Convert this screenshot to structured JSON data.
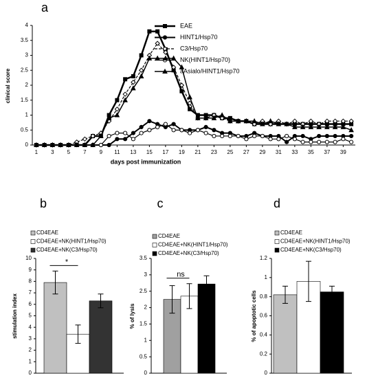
{
  "chart_data": [
    {
      "type": "line",
      "title": "a",
      "x_label": "days post immunization",
      "y_label": "clinical score",
      "x": [
        1,
        2,
        3,
        4,
        5,
        6,
        7,
        8,
        9,
        10,
        11,
        12,
        13,
        14,
        15,
        16,
        17,
        18,
        19,
        20,
        21,
        22,
        23,
        24,
        25,
        26,
        27,
        28,
        29,
        30,
        31,
        32,
        33,
        34,
        35,
        36,
        37,
        38,
        39,
        40
      ],
      "xlim": [
        0.5,
        40.5
      ],
      "xticks": [
        1,
        3,
        5,
        7,
        9,
        11,
        13,
        15,
        17,
        19,
        21,
        23,
        25,
        27,
        29,
        31,
        33,
        35,
        37,
        39
      ],
      "ylim": [
        0,
        4
      ],
      "yticks": [
        0,
        0.5,
        1,
        1.5,
        2,
        2.5,
        3,
        3.5,
        4
      ],
      "series": [
        {
          "name": "EAE",
          "color": "#000000",
          "line_width": 2.5,
          "dashed": false,
          "marker": "square",
          "marker_filled": true,
          "values": [
            0,
            0,
            0,
            0,
            0,
            0,
            0,
            0.3,
            0.3,
            1.0,
            1.5,
            2.2,
            2.3,
            3.0,
            3.8,
            3.8,
            3.2,
            2.5,
            1.8,
            1.2,
            1.0,
            1.0,
            1.0,
            0.9,
            0.9,
            0.8,
            0.8,
            0.7,
            0.7,
            0.7,
            0.7,
            0.7,
            0.7,
            0.7,
            0.7,
            0.7,
            0.7,
            0.7,
            0.7,
            0.7
          ]
        },
        {
          "name": "HINT1/Hsp70",
          "color": "#000000",
          "line_width": 2,
          "dashed": false,
          "marker": "circle",
          "marker_filled": true,
          "values": [
            0,
            0,
            0,
            0,
            0,
            0,
            0,
            0,
            0,
            0,
            0.2,
            0.2,
            0.4,
            0.6,
            0.8,
            0.7,
            0.6,
            0.7,
            0.5,
            0.5,
            0.5,
            0.6,
            0.5,
            0.4,
            0.4,
            0.3,
            0.3,
            0.4,
            0.3,
            0.3,
            0.3,
            0.1,
            0.3,
            0.3,
            0.2,
            0.3,
            0.3,
            0.3,
            0.3,
            0.3
          ]
        },
        {
          "name": "C3/Hsp70",
          "color": "#000000",
          "line_width": 1.2,
          "dashed": true,
          "marker": "diamond",
          "marker_filled": false,
          "values": [
            0,
            0,
            0,
            0,
            0,
            0.1,
            0.2,
            0.3,
            0.4,
            0.8,
            1.2,
            1.7,
            2.1,
            2.5,
            3.0,
            3.4,
            3.1,
            2.6,
            2.0,
            1.4,
            0.9,
            0.9,
            1.0,
            0.9,
            0.8,
            0.8,
            0.8,
            0.7,
            0.8,
            0.7,
            0.8,
            0.7,
            0.8,
            0.7,
            0.8,
            0.7,
            0.8,
            0.8,
            0.8,
            0.8
          ]
        },
        {
          "name": "NK(HINT1/Hsp70)",
          "color": "#000000",
          "line_width": 1.2,
          "dashed": false,
          "marker": "circle",
          "marker_filled": false,
          "values": [
            0,
            0,
            0,
            0,
            0,
            0,
            0,
            0,
            0,
            0.3,
            0.4,
            0.4,
            0.2,
            0.4,
            0.5,
            0.6,
            0.7,
            0.5,
            0.5,
            0.4,
            0.5,
            0.4,
            0.3,
            0.3,
            0.3,
            0.3,
            0.2,
            0.3,
            0.3,
            0.2,
            0.2,
            0.3,
            0.2,
            0.1,
            0.1,
            0.1,
            0.1,
            0.1,
            0.2,
            0.1
          ]
        },
        {
          "name": "aAsialo/HINT1/Hsp70",
          "color": "#000000",
          "line_width": 1.5,
          "dashed": false,
          "marker": "triangle",
          "marker_filled": true,
          "values": [
            0,
            0,
            0,
            0,
            0,
            0,
            0,
            0,
            0.3,
            0.9,
            1.0,
            1.5,
            1.9,
            2.3,
            2.9,
            2.9,
            2.9,
            2.9,
            2.6,
            1.6,
            0.9,
            0.9,
            0.9,
            1.0,
            0.8,
            0.8,
            0.8,
            0.8,
            0.7,
            0.8,
            0.7,
            0.7,
            0.6,
            0.6,
            0.6,
            0.6,
            0.6,
            0.6,
            0.6,
            0.5
          ]
        }
      ]
    },
    {
      "type": "bar",
      "title": "b",
      "y_label": "stimulation index",
      "annotation": "*",
      "ylim": [
        0,
        10
      ],
      "yticks": [
        0,
        1,
        2,
        3,
        4,
        5,
        6,
        7,
        8,
        9,
        10
      ],
      "series": [
        {
          "name": "CD4EAE",
          "color": "#c0c0c0",
          "values": [
            7.9
          ],
          "errors": [
            1.0
          ]
        },
        {
          "name": "CD4EAE+NK(HINT1/Hsp70)",
          "color": "#ffffff",
          "values": [
            3.4
          ],
          "errors": [
            0.8
          ]
        },
        {
          "name": "CD4EAE+NK(C3/Hsp70)",
          "color": "#333333",
          "values": [
            6.3
          ],
          "errors": [
            0.6
          ]
        }
      ]
    },
    {
      "type": "bar",
      "title": "c",
      "y_label": "% of lysis",
      "annotation": "ns",
      "ylim": [
        0,
        3.5
      ],
      "yticks": [
        0,
        0.5,
        1,
        1.5,
        2,
        2.5,
        3,
        3.5
      ],
      "series": [
        {
          "name": "CD4EAE",
          "color": "#a0a0a0",
          "values": [
            2.25
          ],
          "errors": [
            0.42
          ]
        },
        {
          "name": "CD4EAE+NK(HINT1/Hsp70)",
          "color": "#ffffff",
          "values": [
            2.35
          ],
          "errors": [
            0.38
          ]
        },
        {
          "name": "CD4EAE+NK(C3/Hsp70)",
          "color": "#000000",
          "values": [
            2.72
          ],
          "errors": [
            0.25
          ]
        }
      ]
    },
    {
      "type": "bar",
      "title": "d",
      "y_label": "% of apoptotic cells",
      "ylim": [
        0,
        1.2
      ],
      "yticks": [
        0,
        0.2,
        0.4,
        0.6,
        0.8,
        1,
        1.2
      ],
      "series": [
        {
          "name": "CD4EAE",
          "color": "#c0c0c0",
          "values": [
            0.82
          ],
          "errors": [
            0.09
          ]
        },
        {
          "name": "CD4EAE+NK(HINT1/Hsp70)",
          "color": "#ffffff",
          "values": [
            0.96
          ],
          "errors": [
            0.21
          ]
        },
        {
          "name": "CD4EAE+NK(C3/Hsp70)",
          "color": "#000000",
          "values": [
            0.85
          ],
          "errors": [
            0.06
          ]
        }
      ]
    }
  ]
}
